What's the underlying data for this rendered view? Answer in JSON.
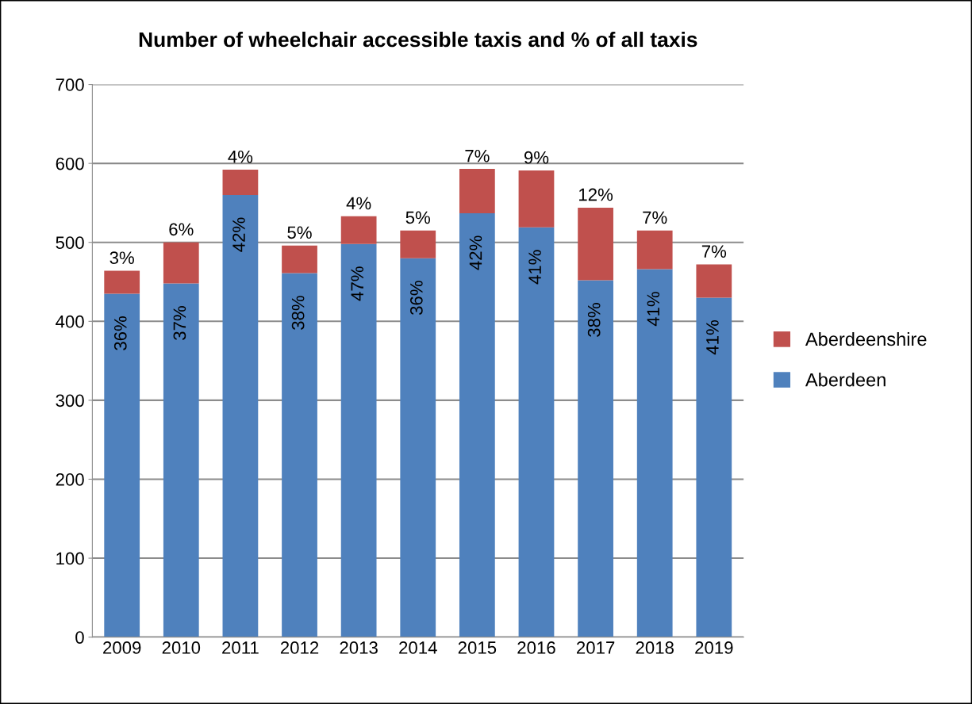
{
  "chart_data": {
    "type": "bar",
    "title": "Number of wheelchair accessible taxis and % of all taxis",
    "categories": [
      "2009",
      "2010",
      "2011",
      "2012",
      "2013",
      "2014",
      "2015",
      "2016",
      "2017",
      "2018",
      "2019"
    ],
    "stacked": true,
    "series": [
      {
        "name": "Aberdeen",
        "color": "#4f81bd",
        "values": [
          435,
          448,
          560,
          461,
          498,
          480,
          537,
          519,
          452,
          466,
          430
        ]
      },
      {
        "name": "Aberdeenshire",
        "color": "#c0504d",
        "values": [
          29,
          52,
          32,
          35,
          35,
          35,
          56,
          72,
          92,
          49,
          42
        ]
      }
    ],
    "annotations": [
      {
        "text": "36%",
        "x": "2009",
        "y": 435
      },
      {
        "text": "37%",
        "x": "2010",
        "y": 448
      },
      {
        "text": "42%",
        "x": "2011",
        "y": 560
      },
      {
        "text": "38%",
        "x": "2012",
        "y": 461
      },
      {
        "text": "47%",
        "x": "2013",
        "y": 498
      },
      {
        "text": "36%",
        "x": "2014",
        "y": 480
      },
      {
        "text": "42%",
        "x": "2015",
        "y": 537
      },
      {
        "text": "41%",
        "x": "2016",
        "y": 519
      },
      {
        "text": "38%",
        "x": "2017",
        "y": 452
      },
      {
        "text": "41%",
        "x": "2018",
        "y": 466
      },
      {
        "text": "41%",
        "x": "2019",
        "y": 430
      },
      {
        "text": "3%",
        "x": "2009",
        "y": 464
      },
      {
        "text": "6%",
        "x": "2010",
        "y": 500
      },
      {
        "text": "4%",
        "x": "2011",
        "y": 592
      },
      {
        "text": "5%",
        "x": "2012",
        "y": 496
      },
      {
        "text": "4%",
        "x": "2013",
        "y": 533
      },
      {
        "text": "5%",
        "x": "2014",
        "y": 515
      },
      {
        "text": "7%",
        "x": "2015",
        "y": 593
      },
      {
        "text": "9%",
        "x": "2016",
        "y": 591
      },
      {
        "text": "12%",
        "x": "2017",
        "y": 544
      },
      {
        "text": "7%",
        "x": "2018",
        "y": 515
      },
      {
        "text": "7%",
        "x": "2019",
        "y": 472
      }
    ],
    "ylim": [
      0,
      700
    ],
    "yticks": [
      0,
      100,
      200,
      300,
      400,
      500,
      600,
      700
    ],
    "grid": "y",
    "legend": "right"
  }
}
